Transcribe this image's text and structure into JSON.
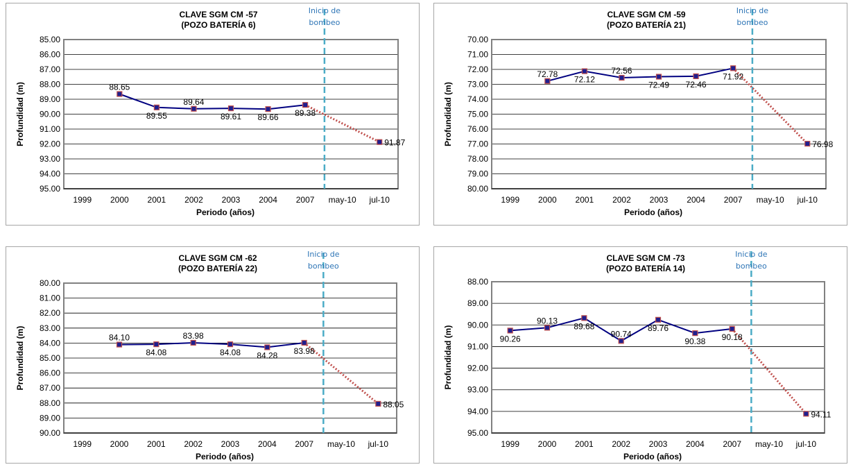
{
  "chart_data": [
    {
      "type": "line",
      "title": [
        "CLAVE SGM CM -57",
        "(POZO BATERÍA 6)"
      ],
      "xlabel": "Periodo (años)",
      "ylabel": "Profundidad (m)",
      "categories": [
        "1999",
        "2000",
        "2001",
        "2002",
        "2003",
        "2004",
        "2007",
        "may-10",
        "jul-10"
      ],
      "ylim": [
        85,
        95
      ],
      "y_step": 1,
      "y_ticks": [
        "85.00",
        "86.00",
        "87.00",
        "88.00",
        "89.00",
        "90.00",
        "91.00",
        "92.00",
        "93.00",
        "94.00",
        "95.00"
      ],
      "y_reversed": true,
      "series": [
        {
          "line_color": "#000080",
          "values": [
            null,
            88.65,
            89.55,
            89.64,
            89.61,
            89.66,
            89.38,
            null,
            null
          ],
          "labels": [
            null,
            "88.65",
            "89.55",
            "89.64",
            "89.61",
            "89.66",
            "89.38",
            null,
            null
          ],
          "label_pos": [
            null,
            "above",
            "below",
            "above",
            "below",
            "below",
            "below",
            null,
            null
          ]
        },
        {
          "line_color": "#c0504d",
          "dotted": true,
          "values": [
            null,
            null,
            null,
            null,
            null,
            null,
            89.38,
            null,
            91.87
          ],
          "labels": [
            null,
            null,
            null,
            null,
            null,
            null,
            null,
            null,
            "91.87"
          ],
          "label_pos": [
            null,
            null,
            null,
            null,
            null,
            null,
            null,
            null,
            "right"
          ]
        }
      ],
      "vline": {
        "after_category": "may-10",
        "text": [
          "Inicio de",
          "bombeo"
        ],
        "color": "#4bacc6"
      },
      "grid": true
    },
    {
      "type": "line",
      "title": [
        "CLAVE SGM CM -59",
        "(POZO BATERÍA 21)"
      ],
      "xlabel": "Periodo (años)",
      "ylabel": "Profundidad (m)",
      "categories": [
        "1999",
        "2000",
        "2001",
        "2002",
        "2003",
        "2004",
        "2007",
        "may-10",
        "jul-10"
      ],
      "ylim": [
        70,
        80
      ],
      "y_step": 1,
      "y_ticks": [
        "70.00",
        "71.00",
        "72.00",
        "73.00",
        "74.00",
        "75.00",
        "76.00",
        "77.00",
        "78.00",
        "79.00",
        "80.00"
      ],
      "y_reversed": true,
      "series": [
        {
          "line_color": "#000080",
          "values": [
            null,
            72.78,
            72.12,
            72.56,
            72.49,
            72.46,
            71.92,
            null,
            null
          ],
          "labels": [
            null,
            "72.78",
            "72.12",
            "72.56",
            "72.49",
            "72.46",
            "71.92",
            null,
            null
          ],
          "label_pos": [
            null,
            "above",
            "below",
            "above",
            "below",
            "below",
            "below",
            null,
            null
          ]
        },
        {
          "line_color": "#c0504d",
          "dotted": true,
          "values": [
            null,
            null,
            null,
            null,
            null,
            null,
            71.92,
            null,
            76.98
          ],
          "labels": [
            null,
            null,
            null,
            null,
            null,
            null,
            null,
            null,
            "76.98"
          ],
          "label_pos": [
            null,
            null,
            null,
            null,
            null,
            null,
            null,
            null,
            "right"
          ]
        }
      ],
      "vline": {
        "after_category": "may-10",
        "text": [
          "Inicio de",
          "bombeo"
        ],
        "color": "#4bacc6"
      },
      "grid": true
    },
    {
      "type": "line",
      "title": [
        "CLAVE SGM CM -62",
        "(POZO BATERÍA 22)"
      ],
      "xlabel": "Periodo (años)",
      "ylabel": "Profundidad (m)",
      "categories": [
        "1999",
        "2000",
        "2001",
        "2002",
        "2003",
        "2004",
        "2007",
        "may-10",
        "jul-10"
      ],
      "ylim": [
        80,
        90
      ],
      "y_step": 1,
      "y_ticks": [
        "80.00",
        "81.00",
        "82.00",
        "83.00",
        "84.00",
        "85.00",
        "86.00",
        "87.00",
        "88.00",
        "89.00",
        "90.00"
      ],
      "y_reversed": true,
      "series": [
        {
          "line_color": "#000080",
          "values": [
            null,
            84.1,
            84.08,
            83.98,
            84.08,
            84.28,
            83.98,
            null,
            null
          ],
          "labels": [
            null,
            "84.10",
            "84.08",
            "83.98",
            "84.08",
            "84.28",
            "83.98",
            null,
            null
          ],
          "label_pos": [
            null,
            "above",
            "below",
            "above",
            "below",
            "below",
            "below",
            null,
            null
          ]
        },
        {
          "line_color": "#c0504d",
          "dotted": true,
          "values": [
            null,
            null,
            null,
            null,
            null,
            null,
            83.98,
            null,
            88.05
          ],
          "labels": [
            null,
            null,
            null,
            null,
            null,
            null,
            null,
            null,
            "88.05"
          ],
          "label_pos": [
            null,
            null,
            null,
            null,
            null,
            null,
            null,
            null,
            "right"
          ]
        }
      ],
      "vline": {
        "after_category": "may-10",
        "text": [
          "Inicio de",
          "bombeo"
        ],
        "color": "#4bacc6"
      },
      "grid": true
    },
    {
      "type": "line",
      "title": [
        "CLAVE SGM CM -73",
        "(POZO BATERÍA 14)"
      ],
      "xlabel": "Periodo (años)",
      "ylabel": "Profundidad (m)",
      "categories": [
        "1999",
        "2000",
        "2001",
        "2002",
        "2003",
        "2004",
        "2007",
        "may-10",
        "jul-10"
      ],
      "ylim": [
        88,
        95
      ],
      "y_step": 1,
      "y_ticks": [
        "88.00",
        "89.00",
        "90.00",
        "91.00",
        "92.00",
        "93.00",
        "94.00",
        "95.00"
      ],
      "y_reversed": true,
      "series": [
        {
          "line_color": "#000080",
          "values": [
            90.26,
            90.13,
            89.68,
            90.74,
            89.76,
            90.38,
            90.18,
            null,
            null
          ],
          "labels": [
            "90.26",
            "90.13",
            "89.68",
            "90.74",
            "89.76",
            "90.38",
            "90.18",
            null,
            null
          ],
          "label_pos": [
            "below",
            "above",
            "below",
            "above",
            "below",
            "below",
            "below",
            null,
            null
          ]
        },
        {
          "line_color": "#c0504d",
          "dotted": true,
          "values": [
            null,
            null,
            null,
            null,
            null,
            null,
            90.18,
            null,
            94.11
          ],
          "labels": [
            null,
            null,
            null,
            null,
            null,
            null,
            null,
            null,
            "94.11"
          ],
          "label_pos": [
            null,
            null,
            null,
            null,
            null,
            null,
            null,
            null,
            "right"
          ]
        }
      ],
      "vline": {
        "after_category": "may-10",
        "text": [
          "Inicio de",
          "bombeo"
        ],
        "color": "#4bacc6"
      },
      "grid": true
    }
  ]
}
